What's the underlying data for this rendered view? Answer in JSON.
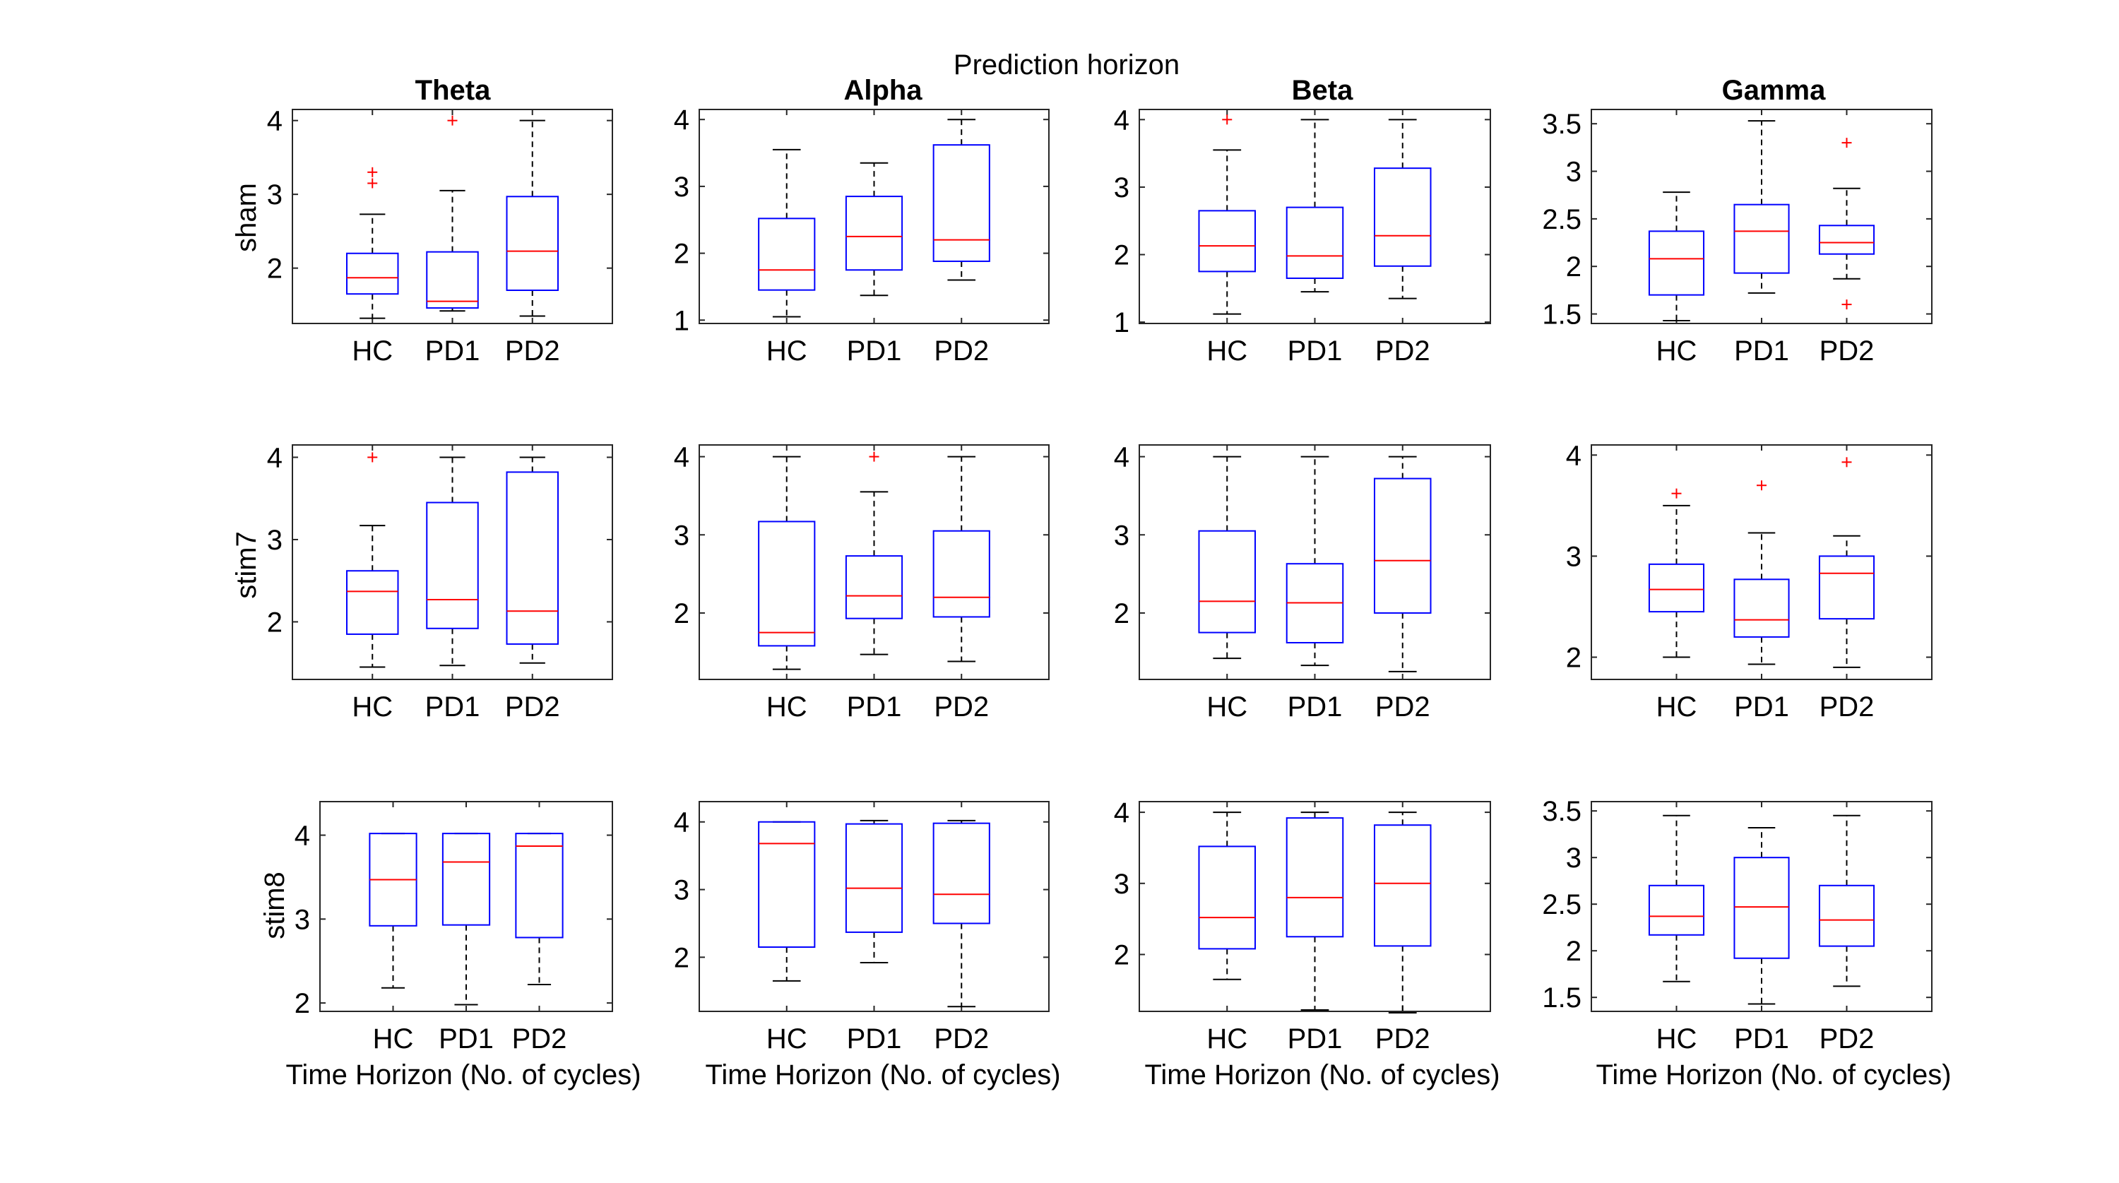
{
  "figure": {
    "title": "Prediction horizon",
    "column_titles": [
      "Theta",
      "Alpha",
      "Beta",
      "Gamma"
    ],
    "row_labels": [
      "sham",
      "stim7",
      "stim8"
    ],
    "xlabel": "Time Horizon (No. of cycles)"
  },
  "colors": {
    "box": "#0000ff",
    "median": "#ff0000",
    "whisker": "#000000",
    "outlier": "#ff0000",
    "axes": "#262626"
  },
  "chart_data": {
    "type": "box",
    "categories": [
      "HC",
      "PD1",
      "PD2"
    ],
    "panels": [
      {
        "row": "sham",
        "band": "Theta",
        "ylim": [
          1.25,
          4.15
        ],
        "yticks": [
          2,
          3,
          4
        ],
        "ytick_labels": [
          "2",
          "3",
          "4"
        ],
        "boxes": [
          {
            "q1": 1.65,
            "median": 1.87,
            "q3": 2.2,
            "wlo": 1.32,
            "whi": 2.73,
            "outliers": [
              3.15,
              3.3
            ]
          },
          {
            "q1": 1.46,
            "median": 1.55,
            "q3": 2.22,
            "wlo": 1.42,
            "whi": 3.05,
            "outliers": [
              4.0
            ]
          },
          {
            "q1": 1.7,
            "median": 2.23,
            "q3": 2.97,
            "wlo": 1.35,
            "whi": 4.0,
            "outliers": []
          }
        ]
      },
      {
        "row": "sham",
        "band": "Alpha",
        "ylim": [
          0.95,
          4.15
        ],
        "yticks": [
          1,
          2,
          3,
          4
        ],
        "ytick_labels": [
          "1",
          "2",
          "3",
          "4"
        ],
        "boxes": [
          {
            "q1": 1.45,
            "median": 1.75,
            "q3": 2.52,
            "wlo": 1.05,
            "whi": 3.55,
            "outliers": []
          },
          {
            "q1": 1.75,
            "median": 2.25,
            "q3": 2.85,
            "wlo": 1.37,
            "whi": 3.35,
            "outliers": []
          },
          {
            "q1": 1.88,
            "median": 2.2,
            "q3": 3.62,
            "wlo": 1.6,
            "whi": 4.0,
            "outliers": []
          }
        ]
      },
      {
        "row": "sham",
        "band": "Beta",
        "ylim": [
          0.98,
          4.15
        ],
        "yticks": [
          1,
          2,
          3,
          4
        ],
        "ytick_labels": [
          "1",
          "2",
          "3",
          "4"
        ],
        "boxes": [
          {
            "q1": 1.75,
            "median": 2.13,
            "q3": 2.65,
            "wlo": 1.12,
            "whi": 3.55,
            "outliers": [
              4.0
            ]
          },
          {
            "q1": 1.65,
            "median": 1.98,
            "q3": 2.7,
            "wlo": 1.45,
            "whi": 4.0,
            "outliers": []
          },
          {
            "q1": 1.83,
            "median": 2.28,
            "q3": 3.28,
            "wlo": 1.35,
            "whi": 4.0,
            "outliers": []
          }
        ]
      },
      {
        "row": "sham",
        "band": "Gamma",
        "ylim": [
          1.4,
          3.65
        ],
        "yticks": [
          1.5,
          2,
          2.5,
          3,
          3.5
        ],
        "ytick_labels": [
          "1.5",
          "2",
          "2.5",
          "3",
          "3.5"
        ],
        "boxes": [
          {
            "q1": 1.7,
            "median": 2.08,
            "q3": 2.37,
            "wlo": 1.43,
            "whi": 2.78,
            "outliers": []
          },
          {
            "q1": 1.93,
            "median": 2.37,
            "q3": 2.65,
            "wlo": 1.72,
            "whi": 3.53,
            "outliers": []
          },
          {
            "q1": 2.13,
            "median": 2.25,
            "q3": 2.43,
            "wlo": 1.87,
            "whi": 2.82,
            "outliers": [
              1.6,
              3.3
            ]
          }
        ]
      },
      {
        "row": "stim7",
        "band": "Theta",
        "ylim": [
          1.3,
          4.15
        ],
        "yticks": [
          2,
          3,
          4
        ],
        "ytick_labels": [
          "2",
          "3",
          "4"
        ],
        "boxes": [
          {
            "q1": 1.85,
            "median": 2.37,
            "q3": 2.62,
            "wlo": 1.45,
            "whi": 3.17,
            "outliers": [
              4.0
            ]
          },
          {
            "q1": 1.92,
            "median": 2.27,
            "q3": 3.45,
            "wlo": 1.47,
            "whi": 4.0,
            "outliers": []
          },
          {
            "q1": 1.73,
            "median": 2.13,
            "q3": 3.82,
            "wlo": 1.5,
            "whi": 4.0,
            "outliers": []
          }
        ]
      },
      {
        "row": "stim7",
        "band": "Alpha",
        "ylim": [
          1.15,
          4.15
        ],
        "yticks": [
          2,
          3,
          4
        ],
        "ytick_labels": [
          "2",
          "3",
          "4"
        ],
        "boxes": [
          {
            "q1": 1.58,
            "median": 1.75,
            "q3": 3.17,
            "wlo": 1.28,
            "whi": 4.0,
            "outliers": []
          },
          {
            "q1": 1.93,
            "median": 2.22,
            "q3": 2.73,
            "wlo": 1.47,
            "whi": 3.55,
            "outliers": [
              4.0
            ]
          },
          {
            "q1": 1.95,
            "median": 2.2,
            "q3": 3.05,
            "wlo": 1.38,
            "whi": 4.0,
            "outliers": []
          }
        ]
      },
      {
        "row": "stim7",
        "band": "Beta",
        "ylim": [
          1.15,
          4.15
        ],
        "yticks": [
          2,
          3,
          4
        ],
        "ytick_labels": [
          "2",
          "3",
          "4"
        ],
        "boxes": [
          {
            "q1": 1.75,
            "median": 2.15,
            "q3": 3.05,
            "wlo": 1.42,
            "whi": 4.0,
            "outliers": []
          },
          {
            "q1": 1.62,
            "median": 2.13,
            "q3": 2.63,
            "wlo": 1.33,
            "whi": 4.0,
            "outliers": []
          },
          {
            "q1": 2.0,
            "median": 2.67,
            "q3": 3.72,
            "wlo": 1.25,
            "whi": 4.0,
            "outliers": []
          }
        ]
      },
      {
        "row": "stim7",
        "band": "Gamma",
        "ylim": [
          1.78,
          4.1
        ],
        "yticks": [
          2,
          3,
          4
        ],
        "ytick_labels": [
          "2",
          "3",
          "4"
        ],
        "boxes": [
          {
            "q1": 2.45,
            "median": 2.67,
            "q3": 2.92,
            "wlo": 2.0,
            "whi": 3.5,
            "outliers": [
              3.62
            ]
          },
          {
            "q1": 2.2,
            "median": 2.37,
            "q3": 2.77,
            "wlo": 1.93,
            "whi": 3.23,
            "outliers": [
              3.7
            ]
          },
          {
            "q1": 2.38,
            "median": 2.83,
            "q3": 3.0,
            "wlo": 1.9,
            "whi": 3.2,
            "outliers": [
              3.93
            ]
          }
        ]
      },
      {
        "row": "stim8",
        "band": "Theta",
        "ylim": [
          1.9,
          4.4
        ],
        "yticks": [
          2,
          3,
          4
        ],
        "ytick_labels": [
          "2",
          "3",
          "4"
        ],
        "boxes": [
          {
            "q1": 2.92,
            "median": 3.47,
            "q3": 4.02,
            "wlo": 2.18,
            "whi": 4.02,
            "outliers": []
          },
          {
            "q1": 2.93,
            "median": 3.68,
            "q3": 4.02,
            "wlo": 1.98,
            "whi": 4.02,
            "outliers": []
          },
          {
            "q1": 2.78,
            "median": 3.87,
            "q3": 4.02,
            "wlo": 2.22,
            "whi": 4.02,
            "outliers": []
          }
        ]
      },
      {
        "row": "stim8",
        "band": "Alpha",
        "ylim": [
          1.2,
          4.3
        ],
        "yticks": [
          2,
          3,
          4
        ],
        "ytick_labels": [
          "2",
          "3",
          "4"
        ],
        "boxes": [
          {
            "q1": 2.15,
            "median": 3.68,
            "q3": 4.0,
            "wlo": 1.65,
            "whi": 4.0,
            "outliers": []
          },
          {
            "q1": 2.37,
            "median": 3.02,
            "q3": 3.97,
            "wlo": 1.92,
            "whi": 4.02,
            "outliers": []
          },
          {
            "q1": 2.5,
            "median": 2.93,
            "q3": 3.98,
            "wlo": 1.27,
            "whi": 4.02,
            "outliers": []
          }
        ]
      },
      {
        "row": "stim8",
        "band": "Beta",
        "ylim": [
          1.2,
          4.15
        ],
        "yticks": [
          2,
          3,
          4
        ],
        "ytick_labels": [
          "2",
          "3",
          "4"
        ],
        "boxes": [
          {
            "q1": 2.08,
            "median": 2.52,
            "q3": 3.52,
            "wlo": 1.65,
            "whi": 4.0,
            "outliers": []
          },
          {
            "q1": 2.25,
            "median": 2.8,
            "q3": 3.92,
            "wlo": 1.22,
            "whi": 4.0,
            "outliers": []
          },
          {
            "q1": 2.12,
            "median": 3.0,
            "q3": 3.82,
            "wlo": 1.18,
            "whi": 4.0,
            "outliers": []
          }
        ]
      },
      {
        "row": "stim8",
        "band": "Gamma",
        "ylim": [
          1.35,
          3.6
        ],
        "yticks": [
          1.5,
          2,
          2.5,
          3,
          3.5
        ],
        "ytick_labels": [
          "1.5",
          "2",
          "2.5",
          "3",
          "3.5"
        ],
        "boxes": [
          {
            "q1": 2.17,
            "median": 2.37,
            "q3": 2.7,
            "wlo": 1.67,
            "whi": 3.45,
            "outliers": []
          },
          {
            "q1": 1.92,
            "median": 2.47,
            "q3": 3.0,
            "wlo": 1.43,
            "whi": 3.32,
            "outliers": []
          },
          {
            "q1": 2.05,
            "median": 2.33,
            "q3": 2.7,
            "wlo": 1.62,
            "whi": 3.45,
            "outliers": []
          }
        ]
      }
    ]
  }
}
